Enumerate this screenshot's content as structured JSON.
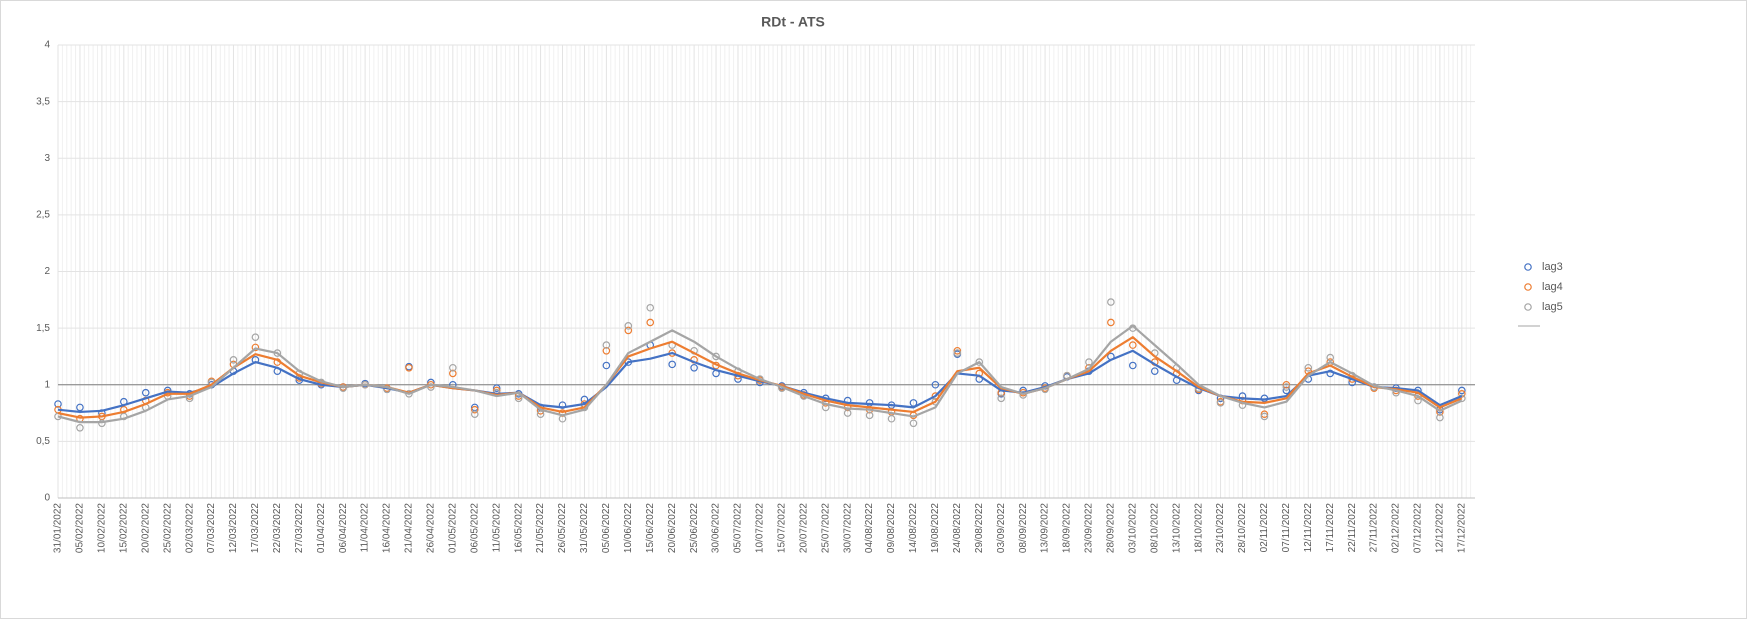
{
  "chart_data": {
    "type": "scatter",
    "title": "RDt - ATS",
    "categories": [
      "31/01/2022",
      "05/02/2022",
      "10/02/2022",
      "15/02/2022",
      "20/02/2022",
      "25/02/2022",
      "02/03/2022",
      "07/03/2022",
      "12/03/2022",
      "17/03/2022",
      "22/03/2022",
      "27/03/2022",
      "01/04/2022",
      "06/04/2022",
      "11/04/2022",
      "16/04/2022",
      "21/04/2022",
      "26/04/2022",
      "01/05/2022",
      "06/05/2022",
      "11/05/2022",
      "16/05/2022",
      "21/05/2022",
      "26/05/2022",
      "31/05/2022",
      "05/06/2022",
      "10/06/2022",
      "15/06/2022",
      "20/06/2022",
      "25/06/2022",
      "30/06/2022",
      "05/07/2022",
      "10/07/2022",
      "15/07/2022",
      "20/07/2022",
      "25/07/2022",
      "30/07/2022",
      "04/08/2022",
      "09/08/2022",
      "14/08/2022",
      "19/08/2022",
      "24/08/2022",
      "29/08/2022",
      "03/09/2022",
      "08/09/2022",
      "13/09/2022",
      "18/09/2022",
      "23/09/2022",
      "28/09/2022",
      "03/10/2022",
      "08/10/2022",
      "13/10/2022",
      "18/10/2022",
      "23/10/2022",
      "28/10/2022",
      "02/11/2022",
      "07/11/2022",
      "12/11/2022",
      "17/11/2022",
      "22/11/2022",
      "27/11/2022",
      "02/12/2022",
      "07/12/2022",
      "12/12/2022",
      "17/12/2022"
    ],
    "series": [
      {
        "name": "lag3",
        "color": "#4472c4",
        "mode": "markers",
        "values": [
          0.83,
          0.8,
          0.75,
          0.85,
          0.93,
          0.95,
          0.92,
          1.0,
          1.12,
          1.22,
          1.12,
          1.04,
          1.0,
          0.98,
          1.01,
          0.96,
          1.16,
          1.02,
          1.0,
          0.8,
          0.97,
          0.92,
          0.8,
          0.82,
          0.87,
          1.17,
          1.2,
          1.35,
          1.18,
          1.15,
          1.1,
          1.05,
          1.02,
          0.99,
          0.93,
          0.88,
          0.86,
          0.84,
          0.82,
          0.84,
          1.0,
          1.27,
          1.05,
          0.92,
          0.95,
          0.99,
          1.07,
          1.12,
          1.25,
          1.17,
          1.12,
          1.04,
          0.95,
          0.88,
          0.9,
          0.88,
          0.95,
          1.05,
          1.1,
          1.02,
          0.98,
          0.97,
          0.95,
          0.78,
          0.95
        ]
      },
      {
        "name": "lag4",
        "color": "#ed7d31",
        "mode": "markers",
        "values": [
          0.78,
          0.7,
          0.72,
          0.78,
          0.86,
          0.93,
          0.9,
          1.03,
          1.18,
          1.33,
          1.2,
          1.06,
          1.01,
          0.98,
          1.0,
          0.97,
          1.15,
          1.0,
          1.1,
          0.78,
          0.95,
          0.9,
          0.77,
          0.75,
          0.83,
          1.3,
          1.48,
          1.55,
          1.28,
          1.22,
          1.17,
          1.08,
          1.04,
          0.98,
          0.91,
          0.84,
          0.8,
          0.78,
          0.76,
          0.73,
          0.9,
          1.3,
          1.1,
          0.93,
          0.93,
          0.97,
          1.08,
          1.15,
          1.55,
          1.35,
          1.2,
          1.1,
          0.96,
          0.85,
          0.86,
          0.74,
          1.0,
          1.12,
          1.2,
          1.05,
          0.97,
          0.95,
          0.9,
          0.76,
          0.92
        ]
      },
      {
        "name": "lag5",
        "color": "#a5a5a5",
        "mode": "markers",
        "values": [
          0.72,
          0.62,
          0.66,
          0.72,
          0.8,
          0.9,
          0.88,
          1.02,
          1.22,
          1.42,
          1.28,
          1.1,
          1.02,
          0.97,
          1.0,
          0.96,
          0.92,
          0.98,
          1.15,
          0.74,
          0.93,
          0.88,
          0.74,
          0.7,
          0.8,
          1.35,
          1.52,
          1.68,
          1.35,
          1.3,
          1.25,
          1.12,
          1.05,
          0.97,
          0.9,
          0.8,
          0.75,
          0.73,
          0.7,
          0.66,
          0.85,
          1.28,
          1.2,
          0.88,
          0.91,
          0.96,
          1.08,
          1.2,
          1.73,
          1.5,
          1.28,
          1.15,
          0.97,
          0.84,
          0.82,
          0.72,
          0.98,
          1.15,
          1.24,
          1.08,
          0.98,
          0.93,
          0.86,
          0.71,
          0.88
        ]
      },
      {
        "color": "#4472c4",
        "mode": "line",
        "values": [
          0.78,
          0.76,
          0.77,
          0.82,
          0.88,
          0.94,
          0.93,
          0.98,
          1.1,
          1.2,
          1.15,
          1.05,
          1.0,
          0.98,
          1.0,
          0.97,
          0.93,
          1.0,
          0.97,
          0.95,
          0.92,
          0.93,
          0.82,
          0.8,
          0.83,
          0.98,
          1.2,
          1.23,
          1.28,
          1.2,
          1.13,
          1.08,
          1.03,
          0.99,
          0.93,
          0.88,
          0.84,
          0.83,
          0.82,
          0.8,
          0.9,
          1.1,
          1.08,
          0.95,
          0.93,
          0.98,
          1.05,
          1.1,
          1.22,
          1.3,
          1.18,
          1.07,
          0.97,
          0.9,
          0.88,
          0.87,
          0.9,
          1.08,
          1.12,
          1.05,
          0.98,
          0.97,
          0.95,
          0.82,
          0.9
        ]
      },
      {
        "color": "#ed7d31",
        "mode": "line",
        "values": [
          0.75,
          0.71,
          0.72,
          0.76,
          0.83,
          0.92,
          0.92,
          1.0,
          1.15,
          1.27,
          1.22,
          1.08,
          1.02,
          0.98,
          1.0,
          0.98,
          0.93,
          1.0,
          0.97,
          0.95,
          0.91,
          0.93,
          0.8,
          0.76,
          0.8,
          1.0,
          1.25,
          1.32,
          1.38,
          1.28,
          1.18,
          1.1,
          1.04,
          0.99,
          0.92,
          0.86,
          0.82,
          0.8,
          0.78,
          0.76,
          0.85,
          1.12,
          1.15,
          0.97,
          0.92,
          0.97,
          1.05,
          1.12,
          1.3,
          1.42,
          1.25,
          1.12,
          0.98,
          0.9,
          0.85,
          0.84,
          0.88,
          1.1,
          1.17,
          1.07,
          0.98,
          0.96,
          0.93,
          0.8,
          0.88
        ]
      },
      {
        "color": "#a5a5a5",
        "mode": "line",
        "values": [
          0.72,
          0.67,
          0.67,
          0.7,
          0.77,
          0.87,
          0.9,
          0.98,
          1.15,
          1.32,
          1.28,
          1.12,
          1.03,
          0.98,
          1.0,
          0.98,
          0.92,
          1.0,
          0.98,
          0.95,
          0.9,
          0.93,
          0.78,
          0.73,
          0.78,
          1.0,
          1.28,
          1.38,
          1.48,
          1.38,
          1.25,
          1.14,
          1.05,
          0.98,
          0.9,
          0.83,
          0.79,
          0.78,
          0.75,
          0.72,
          0.8,
          1.1,
          1.2,
          0.98,
          0.92,
          0.97,
          1.05,
          1.14,
          1.38,
          1.52,
          1.35,
          1.18,
          1.0,
          0.9,
          0.84,
          0.8,
          0.85,
          1.08,
          1.2,
          1.1,
          0.99,
          0.95,
          0.9,
          0.77,
          0.86
        ]
      }
    ],
    "ylim": [
      0,
      4
    ],
    "yticks": [
      0,
      {
        "value": 0.5,
        "label": "0,5"
      },
      1,
      {
        "value": 1.5,
        "label": "1,5"
      },
      2,
      {
        "value": 2.5,
        "label": "2,5"
      },
      3,
      {
        "value": 3.5,
        "label": "3,5"
      },
      4
    ],
    "reference_line": 1,
    "grid": true,
    "legend": "right"
  }
}
